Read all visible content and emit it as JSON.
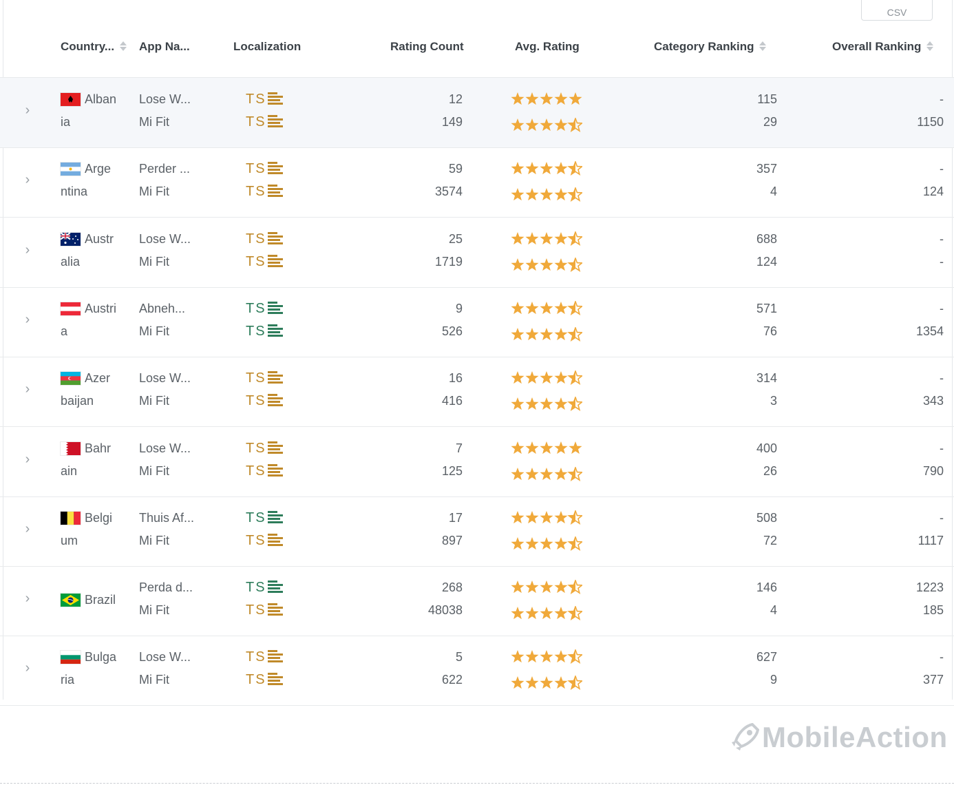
{
  "toolbar": {
    "export_label": "CSV"
  },
  "columns": {
    "country": "Country...",
    "app_name": "App Na...",
    "localization": "Localization",
    "rating_count": "Rating Count",
    "avg_rating": "Avg. Rating",
    "category_ranking": "Category Ranking",
    "overall_ranking": "Overall Ranking"
  },
  "colors": {
    "star": "#f0a93a",
    "loc_gold": "#c08a2a",
    "loc_green": "#2e7d5b",
    "row_hover": "#f5f7fa",
    "logo": "#c9cdd1"
  },
  "loc_glyphs": {
    "t": "T",
    "s": "S"
  },
  "rows": [
    {
      "country_l1": "Alban",
      "country_l2": "ia",
      "flag": "albania",
      "apps": [
        {
          "name": "Lose W...",
          "loc": "gold",
          "count": "12",
          "stars": 5,
          "cat": "115",
          "overall": "-"
        },
        {
          "name": "Mi Fit",
          "loc": "gold",
          "count": "149",
          "stars": 4.5,
          "cat": "29",
          "overall": "1150"
        }
      ]
    },
    {
      "country_l1": "Arge",
      "country_l2": "ntina",
      "flag": "argentina",
      "apps": [
        {
          "name": "Perder ...",
          "loc": "gold",
          "count": "59",
          "stars": 4.5,
          "cat": "357",
          "overall": "-"
        },
        {
          "name": "Mi Fit",
          "loc": "gold",
          "count": "3574",
          "stars": 4.5,
          "cat": "4",
          "overall": "124"
        }
      ]
    },
    {
      "country_l1": "Austr",
      "country_l2": "alia",
      "flag": "australia",
      "apps": [
        {
          "name": "Lose W...",
          "loc": "gold",
          "count": "25",
          "stars": 4.5,
          "cat": "688",
          "overall": "-"
        },
        {
          "name": "Mi Fit",
          "loc": "gold",
          "count": "1719",
          "stars": 4.5,
          "cat": "124",
          "overall": "-"
        }
      ]
    },
    {
      "country_l1": "Austri",
      "country_l2": "a",
      "flag": "austria",
      "apps": [
        {
          "name": "Abneh...",
          "loc": "green",
          "count": "9",
          "stars": 4.5,
          "cat": "571",
          "overall": "-"
        },
        {
          "name": "Mi Fit",
          "loc": "green",
          "count": "526",
          "stars": 4.5,
          "cat": "76",
          "overall": "1354"
        }
      ]
    },
    {
      "country_l1": "Azer",
      "country_l2": "baijan",
      "flag": "azerbaijan",
      "apps": [
        {
          "name": "Lose W...",
          "loc": "gold",
          "count": "16",
          "stars": 4.5,
          "cat": "314",
          "overall": "-"
        },
        {
          "name": "Mi Fit",
          "loc": "gold",
          "count": "416",
          "stars": 4.5,
          "cat": "3",
          "overall": "343"
        }
      ]
    },
    {
      "country_l1": "Bahr",
      "country_l2": "ain",
      "flag": "bahrain",
      "apps": [
        {
          "name": "Lose W...",
          "loc": "gold",
          "count": "7",
          "stars": 5,
          "cat": "400",
          "overall": "-"
        },
        {
          "name": "Mi Fit",
          "loc": "gold",
          "count": "125",
          "stars": 4.5,
          "cat": "26",
          "overall": "790"
        }
      ]
    },
    {
      "country_l1": "Belgi",
      "country_l2": "um",
      "flag": "belgium",
      "apps": [
        {
          "name": "Thuis Af...",
          "loc": "green",
          "count": "17",
          "stars": 4.5,
          "cat": "508",
          "overall": "-"
        },
        {
          "name": "Mi Fit",
          "loc": "gold",
          "count": "897",
          "stars": 4.5,
          "cat": "72",
          "overall": "1117"
        }
      ]
    },
    {
      "country_l1": "Brazil",
      "country_l2": "",
      "flag": "brazil",
      "apps": [
        {
          "name": "Perda d...",
          "loc": "green",
          "count": "268",
          "stars": 4.5,
          "cat": "146",
          "overall": "1223"
        },
        {
          "name": "Mi Fit",
          "loc": "gold",
          "count": "48038",
          "stars": 4.5,
          "cat": "4",
          "overall": "185"
        }
      ]
    },
    {
      "country_l1": "Bulga",
      "country_l2": "ria",
      "flag": "bulgaria",
      "apps": [
        {
          "name": "Lose W...",
          "loc": "gold",
          "count": "5",
          "stars": 4.5,
          "cat": "627",
          "overall": "-"
        },
        {
          "name": "Mi Fit",
          "loc": "gold",
          "count": "622",
          "stars": 4.5,
          "cat": "9",
          "overall": "377"
        }
      ]
    }
  ],
  "branding": {
    "logo_text": "MobileAction"
  }
}
